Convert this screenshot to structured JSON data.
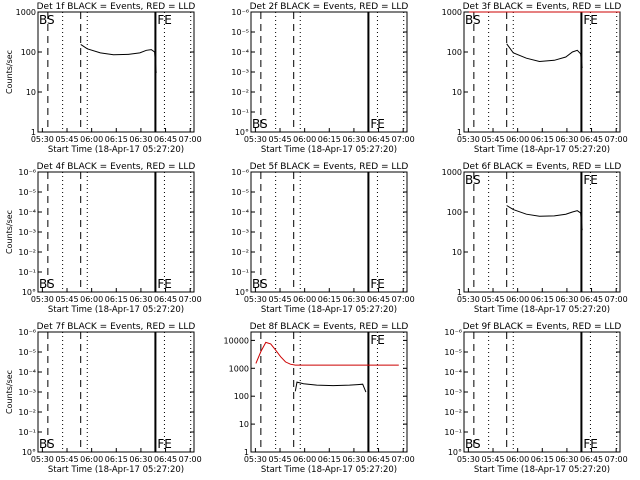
{
  "chart_data": [
    {
      "type": "line",
      "title": "Det 1f BLACK = Events, RED = LLD",
      "xlabel": "Start Time (18-Apr-17 05:27:20)",
      "ylabel": "Counts/sec",
      "y_scale": "log",
      "ylim": [
        1,
        1000
      ],
      "yticks": [
        "1",
        "10",
        "100",
        "1000"
      ],
      "xlim_minutes": [
        0,
        95
      ],
      "xticks": [
        "05:30",
        "05:45",
        "06:00",
        "06:15",
        "06:30",
        "06:45",
        "07:00"
      ],
      "markers": [
        "BS",
        "FE"
      ],
      "marker_pos": [
        "top",
        "top"
      ],
      "series": [
        {
          "color": "#000000",
          "x": [
            26,
            30,
            38,
            46,
            55,
            62,
            66,
            69,
            71,
            72
          ],
          "y": [
            155,
            120,
            95,
            85,
            87,
            95,
            110,
            115,
            100,
            30
          ]
        }
      ]
    },
    {
      "type": "line",
      "title": "Det 2f BLACK = Events, RED = LLD",
      "xlabel": "Start Time (18-Apr-17 05:27:20)",
      "ylabel": "",
      "y_scale": "log",
      "ylim": [
        1,
        1e-06
      ],
      "yticks": [
        "10°",
        "10⁻¹",
        "10⁻²",
        "10⁻³",
        "10⁻⁴",
        "10⁻⁵",
        "10⁻⁶"
      ],
      "xlim_minutes": [
        0,
        95
      ],
      "xticks": [
        "05:30",
        "05:45",
        "06:00",
        "06:15",
        "06:30",
        "06:45",
        "07:00"
      ],
      "markers": [
        "BS",
        "FE"
      ],
      "marker_pos": [
        "bottom",
        "bottom"
      ],
      "series": []
    },
    {
      "type": "line",
      "title": "Det 3f BLACK = Events, RED = LLD",
      "xlabel": "Start Time (18-Apr-17 05:27:20)",
      "ylabel": "",
      "y_scale": "log",
      "ylim": [
        1,
        1000
      ],
      "yticks": [
        "1",
        "10",
        "100",
        "1000"
      ],
      "xlim_minutes": [
        0,
        95
      ],
      "xticks": [
        "05:30",
        "05:45",
        "06:00",
        "06:15",
        "06:30",
        "06:45",
        "07:00"
      ],
      "markers": [
        "BS",
        "FE"
      ],
      "marker_pos": [
        "top",
        "top"
      ],
      "series": [
        {
          "color": "#000000",
          "x": [
            26,
            30,
            38,
            46,
            55,
            62,
            66,
            69,
            71,
            72
          ],
          "y": [
            160,
            95,
            70,
            58,
            62,
            75,
            100,
            110,
            90,
            40
          ]
        },
        {
          "color": "#cc0000",
          "x": [
            3,
            95
          ],
          "y": [
            1000,
            1000
          ]
        }
      ]
    },
    {
      "type": "line",
      "title": "Det 4f BLACK = Events, RED = LLD",
      "xlabel": "Start Time (18-Apr-17 05:27:20)",
      "ylabel": "Counts/sec",
      "y_scale": "log",
      "ylim": [
        1,
        1e-06
      ],
      "yticks": [
        "10°",
        "10⁻¹",
        "10⁻²",
        "10⁻³",
        "10⁻⁴",
        "10⁻⁵",
        "10⁻⁶"
      ],
      "xlim_minutes": [
        0,
        95
      ],
      "xticks": [
        "05:30",
        "05:45",
        "06:00",
        "06:15",
        "06:30",
        "06:45",
        "07:00"
      ],
      "markers": [
        "BS",
        "FE"
      ],
      "marker_pos": [
        "bottom",
        "bottom"
      ],
      "series": []
    },
    {
      "type": "line",
      "title": "Det 5f BLACK = Events, RED = LLD",
      "xlabel": "Start Time (18-Apr-17 05:27:20)",
      "ylabel": "",
      "y_scale": "log",
      "ylim": [
        1,
        1e-06
      ],
      "yticks": [
        "10°",
        "10⁻¹",
        "10⁻²",
        "10⁻³",
        "10⁻⁴",
        "10⁻⁵",
        "10⁻⁶"
      ],
      "xlim_minutes": [
        0,
        95
      ],
      "xticks": [
        "05:30",
        "05:45",
        "06:00",
        "06:15",
        "06:30",
        "06:45",
        "07:00"
      ],
      "markers": [
        "BS",
        "FE"
      ],
      "marker_pos": [
        "bottom",
        "bottom"
      ],
      "series": []
    },
    {
      "type": "line",
      "title": "Det 6f BLACK = Events, RED = LLD",
      "xlabel": "Start Time (18-Apr-17 05:27:20)",
      "ylabel": "",
      "y_scale": "log",
      "ylim": [
        1,
        1000
      ],
      "yticks": [
        "1",
        "10",
        "100",
        "1000"
      ],
      "xlim_minutes": [
        0,
        95
      ],
      "xticks": [
        "05:30",
        "05:45",
        "06:00",
        "06:15",
        "06:30",
        "06:45",
        "07:00"
      ],
      "markers": [
        "BS",
        "FE"
      ],
      "marker_pos": [
        "top",
        "top"
      ],
      "series": [
        {
          "color": "#000000",
          "x": [
            26,
            30,
            38,
            46,
            55,
            62,
            66,
            69,
            71,
            72
          ],
          "y": [
            145,
            115,
            88,
            78,
            80,
            88,
            100,
            108,
            95,
            35
          ]
        }
      ]
    },
    {
      "type": "line",
      "title": "Det 7f BLACK = Events, RED = LLD",
      "xlabel": "Start Time (18-Apr-17 05:27:20)",
      "ylabel": "Counts/sec",
      "y_scale": "log",
      "ylim": [
        1,
        1e-06
      ],
      "yticks": [
        "10°",
        "10⁻¹",
        "10⁻²",
        "10⁻³",
        "10⁻⁴",
        "10⁻⁵",
        "10⁻⁶"
      ],
      "xlim_minutes": [
        0,
        95
      ],
      "xticks": [
        "05:30",
        "05:45",
        "06:00",
        "06:15",
        "06:30",
        "06:45",
        "07:00"
      ],
      "markers": [
        "BS",
        "FE"
      ],
      "marker_pos": [
        "bottom",
        "bottom"
      ],
      "series": []
    },
    {
      "type": "line",
      "title": "Det 8f BLACK = Events, RED = LLD",
      "xlabel": "Start Time (18-Apr-17 05:27:20)",
      "ylabel": "",
      "y_scale": "log",
      "ylim": [
        1,
        20000
      ],
      "yticks": [
        "1",
        "10",
        "100",
        "1000",
        "10000"
      ],
      "xlim_minutes": [
        0,
        95
      ],
      "xticks": [
        "05:30",
        "05:45",
        "06:00",
        "06:15",
        "06:30",
        "06:45",
        "07:00"
      ],
      "markers": [
        "",
        "FE"
      ],
      "marker_pos": [
        "top",
        "top"
      ],
      "series": [
        {
          "color": "#cc0000",
          "x": [
            3,
            6,
            9,
            12,
            15,
            18,
            21,
            24,
            27,
            30,
            35,
            45,
            60,
            75,
            90
          ],
          "y": [
            1500,
            4000,
            8500,
            7500,
            4500,
            2600,
            1700,
            1400,
            1300,
            1300,
            1300,
            1300,
            1300,
            1300,
            1300
          ]
        },
        {
          "color": "#000000",
          "x": [
            27,
            28,
            32,
            40,
            50,
            60,
            65,
            68,
            70
          ],
          "y": [
            150,
            320,
            280,
            250,
            240,
            250,
            260,
            270,
            140
          ]
        }
      ]
    },
    {
      "type": "line",
      "title": "Det 9f BLACK = Events, RED = LLD",
      "xlabel": "Start Time (18-Apr-17 05:27:20)",
      "ylabel": "",
      "y_scale": "log",
      "ylim": [
        1,
        1e-06
      ],
      "yticks": [
        "10°",
        "10⁻¹",
        "10⁻²",
        "10⁻³",
        "10⁻⁴",
        "10⁻⁵",
        "10⁻⁶"
      ],
      "xlim_minutes": [
        0,
        95
      ],
      "xticks": [
        "05:30",
        "05:45",
        "06:00",
        "06:15",
        "06:30",
        "06:45",
        "07:00"
      ],
      "markers": [
        "BS",
        "FE"
      ],
      "marker_pos": [
        "bottom",
        "bottom"
      ],
      "series": []
    }
  ]
}
